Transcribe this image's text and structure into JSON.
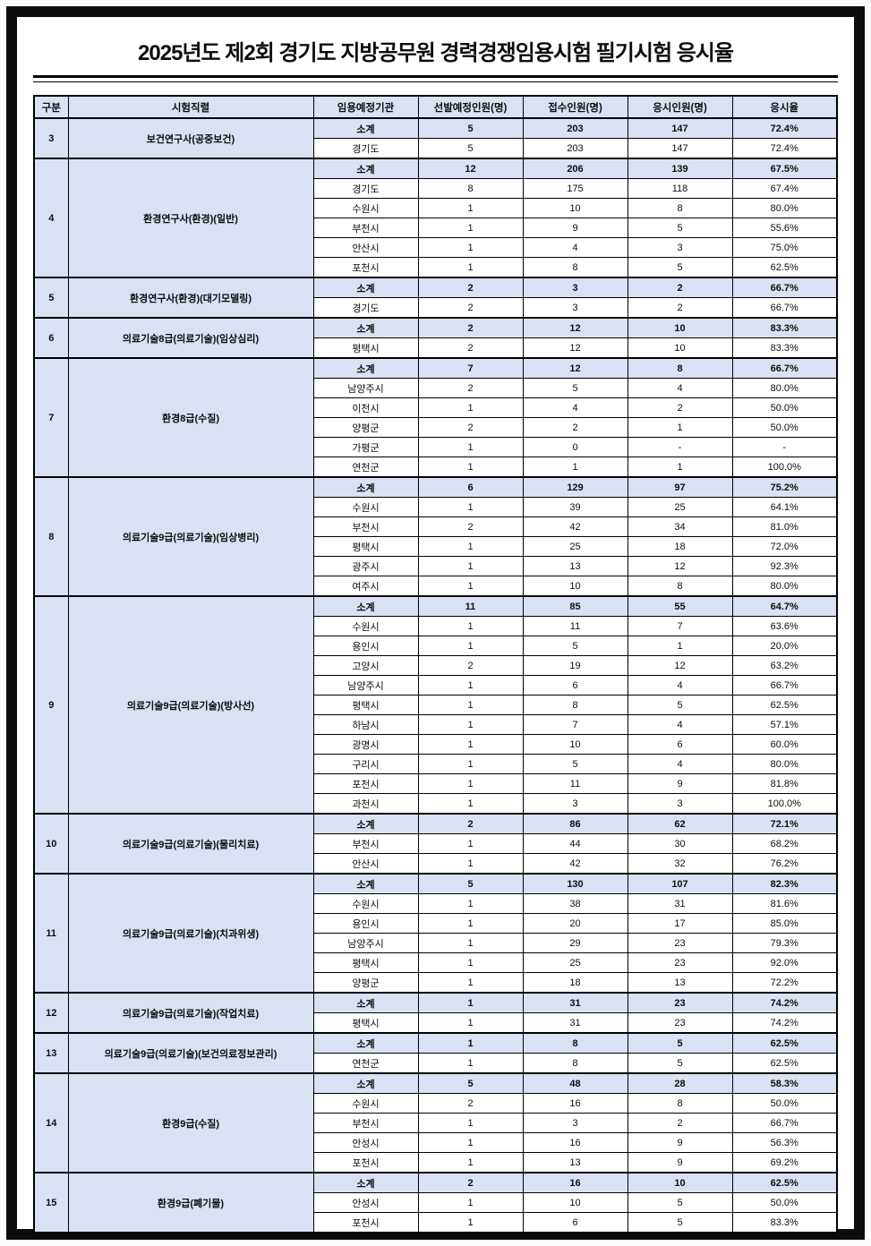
{
  "title": "2025년도 제2회 경기도 지방공무원 경력경쟁임용시험 필기시험 응시율",
  "colors": {
    "accent_fill": "#d9e1f2",
    "border": "#000000",
    "frame": "#0c0c0c"
  },
  "table": {
    "headers": [
      "구분",
      "시험직렬",
      "임용예정기관",
      "선발예정인원(명)",
      "접수인원(명)",
      "응시인원(명)",
      "응시율"
    ],
    "groups": [
      {
        "no": "3",
        "series": "보건연구사(공중보건)",
        "rows": [
          [
            "소계",
            "5",
            "203",
            "147",
            "72.4%"
          ],
          [
            "경기도",
            "5",
            "203",
            "147",
            "72.4%"
          ]
        ]
      },
      {
        "no": "4",
        "series": "환경연구사(환경)(일반)",
        "rows": [
          [
            "소계",
            "12",
            "206",
            "139",
            "67.5%"
          ],
          [
            "경기도",
            "8",
            "175",
            "118",
            "67.4%"
          ],
          [
            "수원시",
            "1",
            "10",
            "8",
            "80.0%"
          ],
          [
            "부천시",
            "1",
            "9",
            "5",
            "55.6%"
          ],
          [
            "안산시",
            "1",
            "4",
            "3",
            "75.0%"
          ],
          [
            "포천시",
            "1",
            "8",
            "5",
            "62.5%"
          ]
        ]
      },
      {
        "no": "5",
        "series": "환경연구사(환경)(대기모델링)",
        "rows": [
          [
            "소계",
            "2",
            "3",
            "2",
            "66.7%"
          ],
          [
            "경기도",
            "2",
            "3",
            "2",
            "66.7%"
          ]
        ]
      },
      {
        "no": "6",
        "series": "의료기술8급(의료기술)(임상심리)",
        "rows": [
          [
            "소계",
            "2",
            "12",
            "10",
            "83.3%"
          ],
          [
            "평택시",
            "2",
            "12",
            "10",
            "83.3%"
          ]
        ]
      },
      {
        "no": "7",
        "series": "환경8급(수질)",
        "rows": [
          [
            "소계",
            "7",
            "12",
            "8",
            "66.7%"
          ],
          [
            "남양주시",
            "2",
            "5",
            "4",
            "80.0%"
          ],
          [
            "이천시",
            "1",
            "4",
            "2",
            "50.0%"
          ],
          [
            "양평군",
            "2",
            "2",
            "1",
            "50.0%"
          ],
          [
            "가평군",
            "1",
            "0",
            "-",
            "-"
          ],
          [
            "연천군",
            "1",
            "1",
            "1",
            "100.0%"
          ]
        ]
      },
      {
        "no": "8",
        "series": "의료기술9급(의료기술)(임상병리)",
        "rows": [
          [
            "소계",
            "6",
            "129",
            "97",
            "75.2%"
          ],
          [
            "수원시",
            "1",
            "39",
            "25",
            "64.1%"
          ],
          [
            "부천시",
            "2",
            "42",
            "34",
            "81.0%"
          ],
          [
            "평택시",
            "1",
            "25",
            "18",
            "72.0%"
          ],
          [
            "광주시",
            "1",
            "13",
            "12",
            "92.3%"
          ],
          [
            "여주시",
            "1",
            "10",
            "8",
            "80.0%"
          ]
        ]
      },
      {
        "no": "9",
        "series": "의료기술9급(의료기술)(방사선)",
        "rows": [
          [
            "소계",
            "11",
            "85",
            "55",
            "64.7%"
          ],
          [
            "수원시",
            "1",
            "11",
            "7",
            "63.6%"
          ],
          [
            "용인시",
            "1",
            "5",
            "1",
            "20.0%"
          ],
          [
            "고양시",
            "2",
            "19",
            "12",
            "63.2%"
          ],
          [
            "남양주시",
            "1",
            "6",
            "4",
            "66.7%"
          ],
          [
            "평택시",
            "1",
            "8",
            "5",
            "62.5%"
          ],
          [
            "하남시",
            "1",
            "7",
            "4",
            "57.1%"
          ],
          [
            "광명시",
            "1",
            "10",
            "6",
            "60.0%"
          ],
          [
            "구리시",
            "1",
            "5",
            "4",
            "80.0%"
          ],
          [
            "포천시",
            "1",
            "11",
            "9",
            "81.8%"
          ],
          [
            "과천시",
            "1",
            "3",
            "3",
            "100.0%"
          ]
        ]
      },
      {
        "no": "10",
        "series": "의료기술9급(의료기술)(물리치료)",
        "rows": [
          [
            "소계",
            "2",
            "86",
            "62",
            "72.1%"
          ],
          [
            "부천시",
            "1",
            "44",
            "30",
            "68.2%"
          ],
          [
            "안산시",
            "1",
            "42",
            "32",
            "76.2%"
          ]
        ]
      },
      {
        "no": "11",
        "series": "의료기술9급(의료기술)(치과위생)",
        "rows": [
          [
            "소계",
            "5",
            "130",
            "107",
            "82.3%"
          ],
          [
            "수원시",
            "1",
            "38",
            "31",
            "81.6%"
          ],
          [
            "용인시",
            "1",
            "20",
            "17",
            "85.0%"
          ],
          [
            "남양주시",
            "1",
            "29",
            "23",
            "79.3%"
          ],
          [
            "평택시",
            "1",
            "25",
            "23",
            "92.0%"
          ],
          [
            "양평군",
            "1",
            "18",
            "13",
            "72.2%"
          ]
        ]
      },
      {
        "no": "12",
        "series": "의료기술9급(의료기술)(작업치료)",
        "rows": [
          [
            "소계",
            "1",
            "31",
            "23",
            "74.2%"
          ],
          [
            "평택시",
            "1",
            "31",
            "23",
            "74.2%"
          ]
        ]
      },
      {
        "no": "13",
        "series": "의료기술9급(의료기술)(보건의료정보관리)",
        "rows": [
          [
            "소계",
            "1",
            "8",
            "5",
            "62.5%"
          ],
          [
            "연천군",
            "1",
            "8",
            "5",
            "62.5%"
          ]
        ]
      },
      {
        "no": "14",
        "series": "환경9급(수질)",
        "rows": [
          [
            "소계",
            "5",
            "48",
            "28",
            "58.3%"
          ],
          [
            "수원시",
            "2",
            "16",
            "8",
            "50.0%"
          ],
          [
            "부천시",
            "1",
            "3",
            "2",
            "66.7%"
          ],
          [
            "안성시",
            "1",
            "16",
            "9",
            "56.3%"
          ],
          [
            "포천시",
            "1",
            "13",
            "9",
            "69.2%"
          ]
        ]
      },
      {
        "no": "15",
        "series": "환경9급(폐기물)",
        "rows": [
          [
            "소계",
            "2",
            "16",
            "10",
            "62.5%"
          ],
          [
            "안성시",
            "1",
            "10",
            "5",
            "50.0%"
          ],
          [
            "포천시",
            "1",
            "6",
            "5",
            "83.3%"
          ]
        ]
      }
    ]
  }
}
